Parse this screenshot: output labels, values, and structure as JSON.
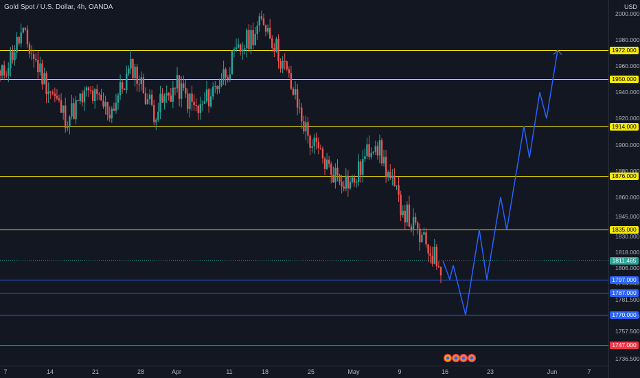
{
  "header": {
    "symbol": "Gold Spot / U.S. Dollar, 4h, OANDA"
  },
  "price_axis": {
    "currency": "USD",
    "ticks": [
      "2000.000",
      "1980.000",
      "1960.000",
      "1940.000",
      "1920.000",
      "1900.000",
      "1880.000",
      "1860.000",
      "1845.000",
      "1830.000",
      "1818.000",
      "1806.000",
      "1794.000",
      "1781.500",
      "1769.000",
      "1757.500",
      "1736.500"
    ]
  },
  "time_axis": {
    "ticks": [
      "7",
      "14",
      "21",
      "28",
      "Apr",
      "11",
      "18",
      "25",
      "May",
      "9",
      "16",
      "23",
      "Jun",
      "7"
    ]
  },
  "levels": [
    {
      "price": 1972,
      "label": "1972.000",
      "color": "#f5e90b",
      "tag_text": "#000000"
    },
    {
      "price": 1950,
      "label": "1950.000",
      "color": "#f5e90b",
      "tag_text": "#000000"
    },
    {
      "price": 1914,
      "label": "1914.000",
      "color": "#f5e90b",
      "tag_text": "#000000"
    },
    {
      "price": 1876,
      "label": "1876.000",
      "color": "#f5e90b",
      "tag_text": "#000000"
    },
    {
      "price": 1835,
      "label": "1835.000",
      "color": "#f5e90b",
      "tag_text": "#000000"
    },
    {
      "price": 1797,
      "label": "1797.000",
      "color": "#2962ff",
      "tag_text": "#ffffff"
    },
    {
      "price": 1787,
      "label": "1787.000",
      "color": "#2962ff",
      "tag_text": "#ffffff"
    },
    {
      "price": 1770,
      "label": "1770.000",
      "color": "#2962ff",
      "tag_text": "#ffffff"
    },
    {
      "price": 1747,
      "label": "1747.000",
      "color": "#f23645",
      "tag_text": "#ffffff"
    }
  ],
  "current_price": {
    "price": 1811.465,
    "label": "1811.465",
    "color": "#26a69a"
  },
  "colors": {
    "background": "#131722",
    "up": "#26a69a",
    "down": "#ef5350",
    "projection": "#2962ff"
  },
  "chart_data": {
    "type": "candlestick",
    "title": "Gold Spot / U.S. Dollar, 4h, OANDA",
    "y_unit": "USD",
    "x_tick_labels": [
      "7",
      "14",
      "21",
      "28",
      "Apr",
      "11",
      "18",
      "25",
      "May",
      "9",
      "16",
      "23",
      "Jun",
      "7"
    ],
    "price_path": [
      {
        "t": "7",
        "price": 1950
      },
      {
        "t": "7",
        "price": 1985
      },
      {
        "t": "14",
        "price": 1950
      },
      {
        "t": "14",
        "price": 1920
      },
      {
        "t": "21",
        "price": 1940
      },
      {
        "t": "21",
        "price": 1925
      },
      {
        "t": "28",
        "price": 1960
      },
      {
        "t": "28",
        "price": 1925
      },
      {
        "t": "Apr",
        "price": 1945
      },
      {
        "t": "Apr",
        "price": 1925
      },
      {
        "t": "11",
        "price": 1950
      },
      {
        "t": "11",
        "price": 1975
      },
      {
        "t": "18",
        "price": 1995
      },
      {
        "t": "18",
        "price": 1955
      },
      {
        "t": "25",
        "price": 1905
      },
      {
        "t": "25",
        "price": 1880
      },
      {
        "t": "May",
        "price": 1870
      },
      {
        "t": "9",
        "price": 1905
      },
      {
        "t": "9",
        "price": 1860
      },
      {
        "t": "16",
        "price": 1830
      },
      {
        "t": "16",
        "price": 1808
      }
    ],
    "projection_path": [
      1811.465,
      1797,
      1808,
      1770,
      1835,
      1797,
      1860,
      1835,
      1914,
      1890,
      1940,
      1920,
      1972
    ]
  }
}
